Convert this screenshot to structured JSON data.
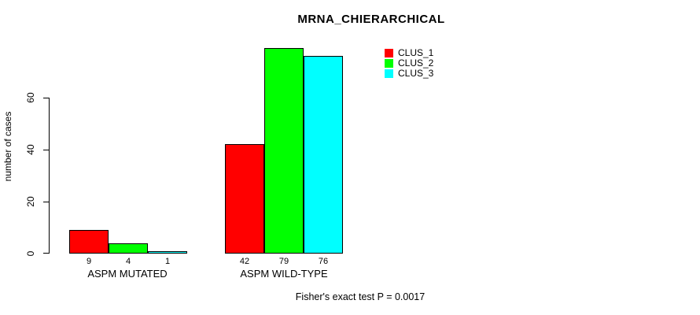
{
  "chart_data": {
    "type": "bar",
    "title": "MRNA_CHIERARCHICAL",
    "xlabel": "",
    "ylabel": "number of cases",
    "categories": [
      "ASPM MUTATED",
      "ASPM WILD-TYPE"
    ],
    "series": [
      {
        "name": "CLUS_1",
        "color": "#ff0000",
        "values": [
          9,
          42
        ]
      },
      {
        "name": "CLUS_2",
        "color": "#00ff00",
        "values": [
          4,
          79
        ]
      },
      {
        "name": "CLUS_3",
        "color": "#00ffff",
        "values": [
          1,
          76
        ]
      }
    ],
    "yticks": [
      0,
      20,
      40,
      60
    ],
    "ylim": [
      0,
      60
    ],
    "grid": false,
    "legend_position": "top-right",
    "bar_border_color": "#000000",
    "annotation": "Fisher's exact test P = 0.0017"
  }
}
